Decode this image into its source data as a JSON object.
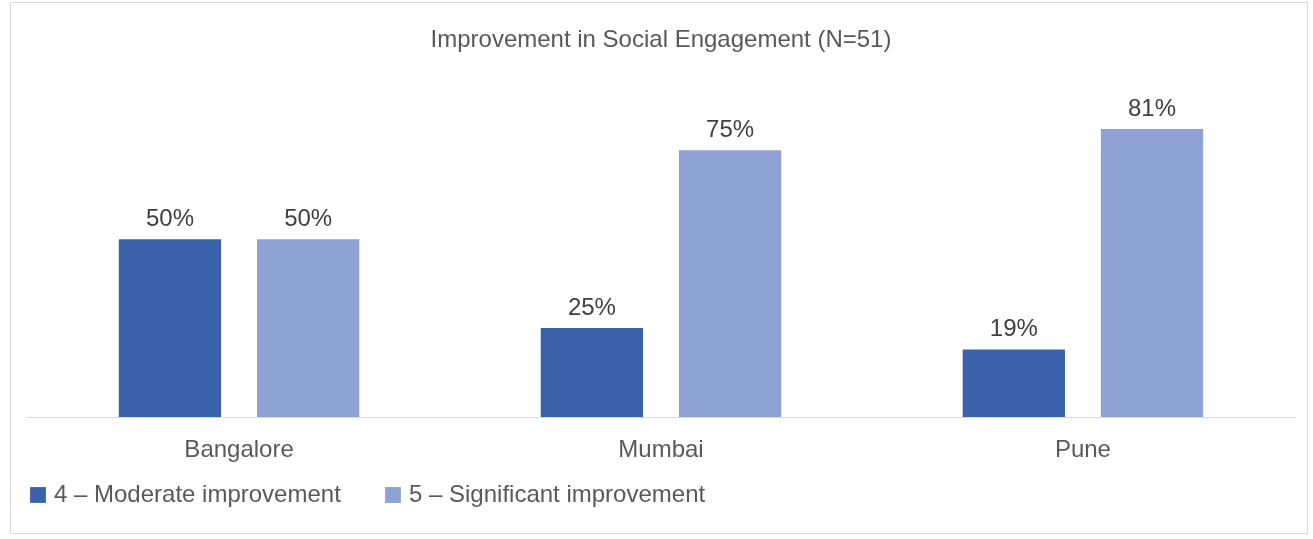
{
  "chart_data": {
    "type": "bar",
    "title": "Improvement in Social Engagement (N=51)",
    "categories": [
      "Bangalore",
      "Mumbai",
      "Pune"
    ],
    "series": [
      {
        "name": "4 – Moderate improvement",
        "color": "#3a62a8",
        "values": [
          50,
          25,
          19
        ],
        "value_labels": [
          "50%",
          "25%",
          "19%"
        ]
      },
      {
        "name": "5 – Significant improvement",
        "color": "#8fa2d4",
        "values": [
          50,
          75,
          81
        ],
        "value_labels": [
          "50%",
          "75%",
          "81%"
        ]
      }
    ],
    "legend": "bottom",
    "grid": false
  }
}
